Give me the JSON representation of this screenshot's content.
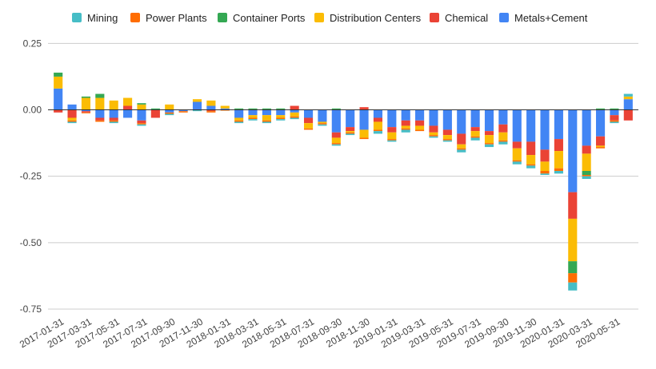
{
  "chart_data": {
    "type": "bar",
    "stacked": true,
    "title": "",
    "xlabel": "",
    "ylabel": "",
    "ylim": [
      -0.75,
      0.3
    ],
    "yticks": [
      0.25,
      0,
      -0.25,
      -0.5,
      -0.75
    ],
    "ytick_labels": [
      "0.25",
      "0.00",
      "-0.25",
      "-0.50",
      "-0.75"
    ],
    "grid": true,
    "legend_position": "top",
    "categories": [
      "2017-01-31",
      "2017-02-28",
      "2017-03-31",
      "2017-04-30",
      "2017-05-31",
      "2017-06-30",
      "2017-07-31",
      "2017-08-31",
      "2017-09-30",
      "2017-10-31",
      "2017-11-30",
      "2017-12-31",
      "2018-01-31",
      "2018-02-28",
      "2018-03-31",
      "2018-04-30",
      "2018-05-31",
      "2018-06-30",
      "2018-07-31",
      "2018-08-31",
      "2018-09-30",
      "2018-10-31",
      "2018-11-30",
      "2018-12-31",
      "2019-01-31",
      "2019-02-28",
      "2019-03-31",
      "2019-04-30",
      "2019-05-31",
      "2019-06-30",
      "2019-07-31",
      "2019-08-31",
      "2019-09-30",
      "2019-10-31",
      "2019-11-30",
      "2019-12-31",
      "2020-01-31",
      "2020-02-29",
      "2020-03-31",
      "2020-04-30",
      "2020-05-31",
      "2020-06-30"
    ],
    "x_tick_labels": [
      "2017-01-31",
      "2017-03-31",
      "2017-05-31",
      "2017-07-31",
      "2017-09-30",
      "2017-11-30",
      "2018-01-31",
      "2018-03-31",
      "2018-05-31",
      "2018-07-31",
      "2018-09-30",
      "2018-11-30",
      "2019-01-31",
      "2019-03-31",
      "2019-05-31",
      "2019-07-31",
      "2019-09-30",
      "2019-11-30",
      "2020-01-31",
      "2020-03-31",
      "2020-05-31"
    ],
    "series": [
      {
        "name": "Metals+Cement",
        "color": "#4285f4",
        "values": [
          0.08,
          0.02,
          -0.005,
          -0.03,
          -0.03,
          -0.03,
          -0.04,
          0.0,
          -0.01,
          -0.005,
          0.03,
          0.015,
          0.005,
          -0.03,
          -0.02,
          -0.02,
          -0.02,
          -0.01,
          -0.03,
          -0.045,
          -0.085,
          -0.065,
          -0.075,
          -0.03,
          -0.065,
          -0.04,
          -0.04,
          -0.06,
          -0.075,
          -0.09,
          -0.065,
          -0.08,
          -0.055,
          -0.12,
          -0.12,
          -0.15,
          -0.11,
          -0.31,
          -0.135,
          -0.1,
          -0.02,
          0.04
        ]
      },
      {
        "name": "Chemical",
        "color": "#ea4335",
        "values": [
          -0.01,
          -0.03,
          -0.005,
          -0.01,
          -0.01,
          0.015,
          -0.01,
          -0.03,
          0.0,
          0.0,
          0.0,
          -0.005,
          0.0,
          0.0,
          0.0,
          0.0,
          0.0,
          0.015,
          -0.02,
          0.0,
          -0.02,
          -0.015,
          0.01,
          -0.015,
          -0.02,
          -0.02,
          -0.02,
          -0.025,
          -0.02,
          -0.04,
          -0.015,
          -0.015,
          -0.03,
          -0.025,
          -0.05,
          -0.045,
          -0.045,
          -0.1,
          -0.03,
          -0.035,
          -0.02,
          -0.04
        ]
      },
      {
        "name": "Distribution Centers",
        "color": "#fbbc04",
        "values": [
          0.045,
          -0.01,
          0.045,
          0.045,
          0.035,
          0.03,
          0.02,
          0.0,
          0.02,
          0.0,
          0.01,
          0.02,
          0.01,
          -0.01,
          -0.01,
          -0.02,
          -0.01,
          -0.015,
          -0.02,
          -0.005,
          -0.02,
          -0.005,
          -0.03,
          -0.03,
          -0.025,
          -0.01,
          -0.015,
          -0.01,
          -0.015,
          -0.015,
          -0.02,
          -0.03,
          -0.03,
          -0.045,
          -0.035,
          -0.035,
          -0.065,
          -0.16,
          -0.065,
          -0.005,
          0.0,
          0.01
        ]
      },
      {
        "name": "Container Ports",
        "color": "#34a853",
        "values": [
          0.015,
          0.0,
          0.005,
          0.015,
          0.0,
          0.0,
          0.005,
          0.005,
          0.0,
          0.0,
          0.0,
          0.0,
          0.0,
          0.005,
          0.005,
          0.005,
          0.005,
          0.0,
          0.0,
          0.0,
          0.005,
          0.0,
          0.0,
          0.0,
          0.0,
          0.0,
          0.0,
          0.0,
          0.0,
          0.0,
          0.0,
          0.0,
          0.0,
          0.0,
          0.0,
          0.0,
          0.0,
          -0.045,
          -0.015,
          0.005,
          0.005,
          0.0
        ]
      },
      {
        "name": "Power Plants",
        "color": "#ff6d01",
        "values": [
          0.0,
          -0.005,
          -0.003,
          -0.005,
          -0.005,
          0.0,
          -0.005,
          0.0,
          -0.005,
          -0.005,
          0.0,
          -0.005,
          -0.003,
          -0.005,
          -0.005,
          -0.005,
          -0.005,
          -0.005,
          -0.005,
          -0.005,
          -0.005,
          -0.005,
          -0.005,
          -0.005,
          -0.005,
          -0.005,
          -0.005,
          -0.005,
          -0.005,
          -0.005,
          -0.005,
          -0.005,
          -0.005,
          -0.005,
          -0.005,
          -0.01,
          -0.01,
          -0.035,
          -0.005,
          -0.005,
          -0.005,
          0.0
        ]
      },
      {
        "name": "Mining",
        "color": "#46bdc6",
        "values": [
          0.0,
          -0.005,
          0.0,
          0.0,
          -0.005,
          0.0,
          -0.005,
          0.0,
          -0.005,
          0.0,
          -0.005,
          0.0,
          0.0,
          -0.005,
          -0.005,
          -0.005,
          -0.005,
          -0.005,
          0.0,
          -0.005,
          -0.005,
          -0.005,
          0.0,
          -0.01,
          -0.005,
          -0.01,
          0.0,
          -0.005,
          -0.005,
          -0.01,
          -0.01,
          -0.01,
          -0.01,
          -0.01,
          -0.01,
          -0.005,
          -0.01,
          -0.03,
          -0.01,
          0.0,
          -0.005,
          0.01
        ]
      }
    ],
    "legend_order": [
      "Mining",
      "Power Plants",
      "Container Ports",
      "Distribution Centers",
      "Chemical",
      "Metals+Cement"
    ]
  }
}
